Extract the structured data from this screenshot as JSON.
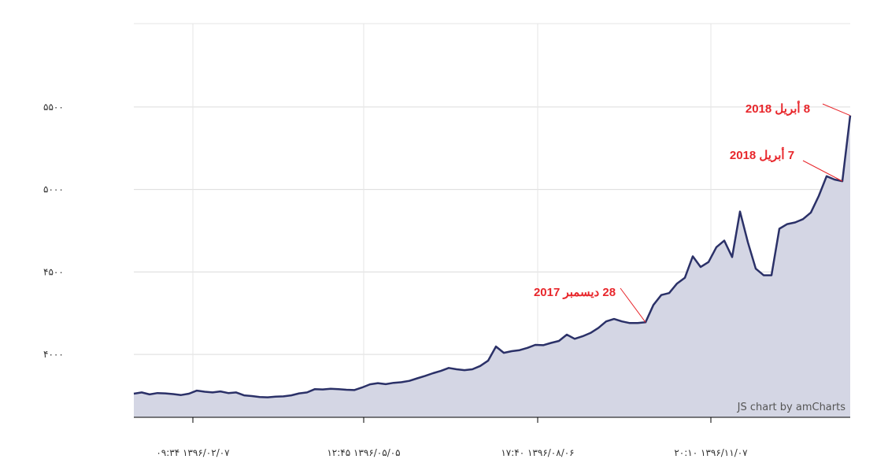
{
  "chart_data": {
    "type": "area",
    "series": [
      {
        "color": "#2b3168",
        "fill": "#d4d6e4",
        "values": [
          3762,
          3770,
          3758,
          3766,
          3764,
          3760,
          3754,
          3762,
          3781,
          3774,
          3770,
          3776,
          3766,
          3770,
          3752,
          3748,
          3742,
          3740,
          3744,
          3746,
          3752,
          3764,
          3770,
          3790,
          3788,
          3792,
          3790,
          3786,
          3784,
          3800,
          3819,
          3826,
          3820,
          3828,
          3832,
          3840,
          3855,
          3870,
          3886,
          3900,
          3918,
          3910,
          3905,
          3910,
          3930,
          3962,
          4048,
          4010,
          4020,
          4026,
          4040,
          4058,
          4056,
          4070,
          4082,
          4120,
          4095,
          4110,
          4130,
          4160,
          4200,
          4215,
          4200,
          4190,
          4190,
          4195,
          4300,
          4360,
          4372,
          4430,
          4465,
          4595,
          4530,
          4560,
          4650,
          4690,
          4590,
          4866,
          4680,
          4520,
          4480,
          4480,
          4762,
          4790,
          4800,
          4820,
          4860,
          4960,
          5080,
          5060,
          5050,
          5448
        ]
      }
    ],
    "xlim": [
      0,
      91
    ],
    "xticks": [
      {
        "value": 7.5,
        "label": "۰۹:۳۴ ۱۳۹۶/۰۲/۰۷"
      },
      {
        "value": 29.2,
        "label": "۱۲:۴۵ ۱۳۹۶/۰۵/۰۵"
      },
      {
        "value": 51.3,
        "label": "۱۷:۴۰ ۱۳۹۶/۰۸/۰۶"
      },
      {
        "value": 73.3,
        "label": "۲۰:۱۰ ۱۳۹۶/۱۱/۰۷"
      }
    ],
    "ylim": [
      3619,
      6005
    ],
    "yticks": [
      {
        "value": 4000,
        "label": "۴۰۰۰"
      },
      {
        "value": 4500,
        "label": "۴۵۰۰"
      },
      {
        "value": 5000,
        "label": "۵۰۰۰"
      },
      {
        "value": 5500,
        "label": "۵۵۰۰"
      }
    ],
    "grid": true,
    "annotations": [
      "28 ديسمبر 2017",
      "7 أبريل 2018",
      "8 أبريل 2018"
    ],
    "credit": "JS chart by amCharts"
  }
}
